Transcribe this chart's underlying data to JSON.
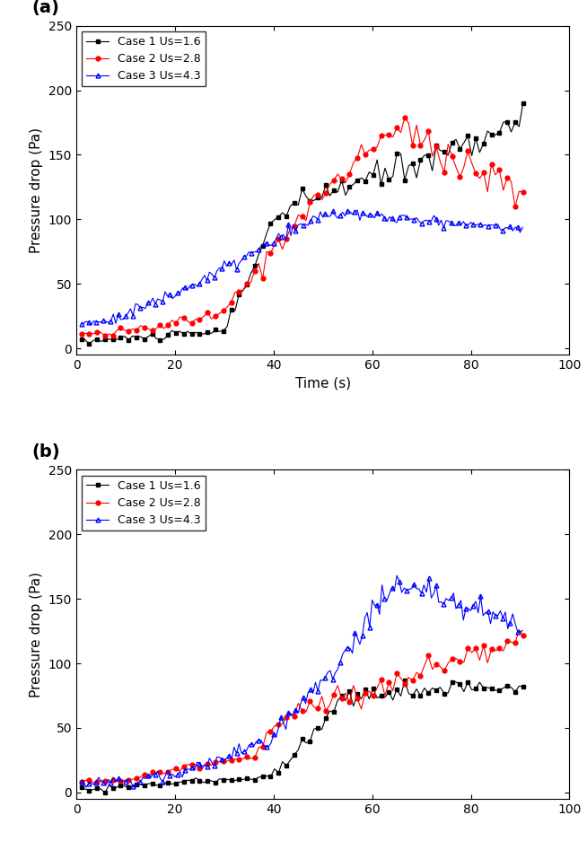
{
  "figsize": [
    6.54,
    9.57
  ],
  "dpi": 100,
  "panel_a": {
    "label": "(a)",
    "xlabel": "Time (s)",
    "ylabel": "Pressure drop (Pa)",
    "xlim": [
      0,
      100
    ],
    "ylim": [
      -5,
      250
    ],
    "xticks": [
      0,
      20,
      40,
      60,
      80,
      100
    ],
    "yticks": [
      0,
      50,
      100,
      150,
      200,
      250
    ],
    "legend_loc": "upper left",
    "case1": {
      "label": "Case 1 Us=1.6",
      "color": "black",
      "marker": "s",
      "markersize": 3.5,
      "linewidth": 0.8
    },
    "case2": {
      "label": "Case 2 Us=2.8",
      "color": "red",
      "marker": "o",
      "markersize": 3.5,
      "linewidth": 0.8
    },
    "case3": {
      "label": "Case 3 Us=4.3",
      "color": "blue",
      "marker": "^",
      "markersize": 3.5,
      "linewidth": 0.8,
      "fillstyle": "none"
    }
  },
  "panel_b": {
    "label": "(b)",
    "xlabel": "",
    "ylabel": "Pressure drop (Pa)",
    "xlim": [
      0,
      100
    ],
    "ylim": [
      -5,
      250
    ],
    "xticks": [
      0,
      20,
      40,
      60,
      80,
      100
    ],
    "yticks": [
      0,
      50,
      100,
      150,
      200,
      250
    ],
    "legend_loc": "upper left",
    "case1": {
      "label": "Case 1 Us=1.6",
      "color": "black",
      "marker": "s",
      "markersize": 3.5,
      "linewidth": 0.8
    },
    "case2": {
      "label": "Case 2 Us=2.8",
      "color": "red",
      "marker": "o",
      "markersize": 3.5,
      "linewidth": 0.8
    },
    "case3": {
      "label": "Case 3 Us=4.3",
      "color": "blue",
      "marker": "^",
      "markersize": 3.5,
      "linewidth": 0.8,
      "fillstyle": "none"
    }
  }
}
